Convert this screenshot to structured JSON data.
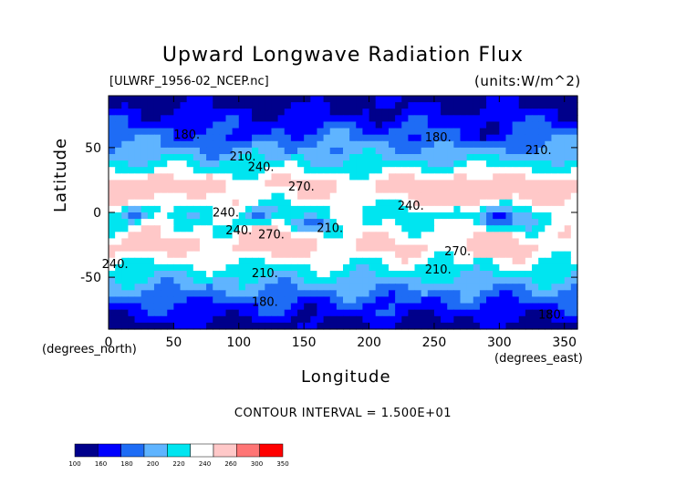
{
  "header": {
    "title": "Upward Longwave Radiation Flux",
    "dataset": "[ULWRF_1956-02_NCEP.nc]",
    "units": "(units:W/m^2)"
  },
  "axes": {
    "xlabel": "Longitude",
    "ylabel": "Latitude",
    "x_unit_left": "(degrees_north)",
    "x_unit_right": "(degrees_east)"
  },
  "footer": {
    "contour_interval": "CONTOUR INTERVAL = 1.500E+01"
  },
  "chart_data": {
    "type": "heatmap",
    "title": "Upward Longwave Radiation Flux",
    "xlabel": "Longitude",
    "ylabel": "Latitude",
    "xlim": [
      0,
      360
    ],
    "ylim": [
      -90,
      90
    ],
    "x_ticks": [
      0,
      50,
      100,
      150,
      200,
      250,
      300,
      350
    ],
    "y_ticks": [
      -50,
      0,
      50
    ],
    "colorbar_levels": [
      100,
      160,
      180,
      200,
      220,
      240,
      260,
      300,
      350
    ],
    "colorbar_colors": [
      "#00008b",
      "#0000ff",
      "#1e6cf5",
      "#5fb4ff",
      "#00e5f0",
      "#ffffff",
      "#ffc8c8",
      "#ff7575",
      "#ff0000"
    ],
    "contour_labels": [
      {
        "text": "180",
        "lon": 60,
        "lat": 57
      },
      {
        "text": "210",
        "lon": 103,
        "lat": 40
      },
      {
        "text": "240",
        "lon": 117,
        "lat": 32
      },
      {
        "text": "270",
        "lon": 148,
        "lat": 17
      },
      {
        "text": "180",
        "lon": 253,
        "lat": 55
      },
      {
        "text": "210",
        "lon": 330,
        "lat": 45
      },
      {
        "text": "240",
        "lon": 90,
        "lat": -3
      },
      {
        "text": "240",
        "lon": 100,
        "lat": -17
      },
      {
        "text": "270",
        "lon": 125,
        "lat": -20
      },
      {
        "text": "210",
        "lon": 170,
        "lat": -15
      },
      {
        "text": "240",
        "lon": 232,
        "lat": 2
      },
      {
        "text": "270",
        "lon": 268,
        "lat": -33
      },
      {
        "text": "240",
        "lon": 5,
        "lat": -43
      },
      {
        "text": "210",
        "lon": 120,
        "lat": -50
      },
      {
        "text": "210",
        "lon": 253,
        "lat": -47
      },
      {
        "text": "180",
        "lon": 120,
        "lat": -72
      },
      {
        "text": "180",
        "lon": 340,
        "lat": -82
      }
    ],
    "value_profile_by_latitude": [
      {
        "lat": 90,
        "value": 150
      },
      {
        "lat": 75,
        "value": 165
      },
      {
        "lat": 60,
        "value": 190
      },
      {
        "lat": 45,
        "value": 210
      },
      {
        "lat": 30,
        "value": 245
      },
      {
        "lat": 20,
        "value": 265
      },
      {
        "lat": 10,
        "value": 250
      },
      {
        "lat": 0,
        "value": 235
      },
      {
        "lat": -10,
        "value": 240
      },
      {
        "lat": -25,
        "value": 262
      },
      {
        "lat": -40,
        "value": 240
      },
      {
        "lat": -55,
        "value": 210
      },
      {
        "lat": -70,
        "value": 180
      },
      {
        "lat": -90,
        "value": 150
      }
    ]
  }
}
